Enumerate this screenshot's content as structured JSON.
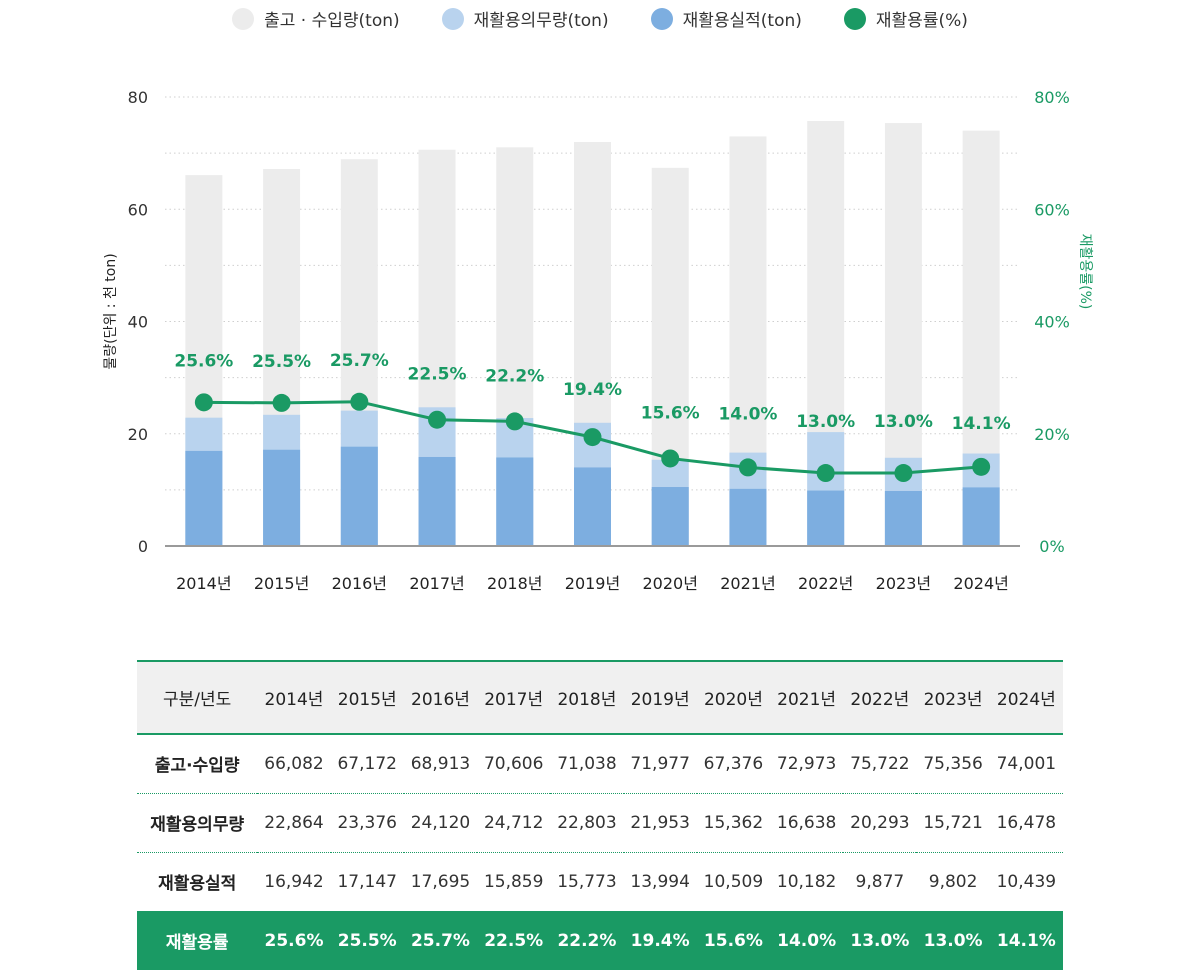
{
  "legend": [
    {
      "label": "출고 · 수입량(ton)",
      "color": "#ececec"
    },
    {
      "label": "재활용의무량(ton)",
      "color": "#b9d3ee"
    },
    {
      "label": "재활용실적(ton)",
      "color": "#7daee0"
    },
    {
      "label": "재활용률(%)",
      "color": "#1a9a64"
    }
  ],
  "chart_data": {
    "type": "bar",
    "categories": [
      "2014년",
      "2015년",
      "2016년",
      "2017년",
      "2018년",
      "2019년",
      "2020년",
      "2021년",
      "2022년",
      "2023년",
      "2024년"
    ],
    "series": [
      {
        "name": "출고 · 수입량(ton)",
        "type": "bar",
        "axis": "left",
        "color": "#ececec",
        "values": [
          66.082,
          67.172,
          68.913,
          70.606,
          71.038,
          71.977,
          67.376,
          72.973,
          75.722,
          75.356,
          74.001
        ]
      },
      {
        "name": "재활용의무량(ton)",
        "type": "bar",
        "axis": "left",
        "color": "#b9d3ee",
        "values": [
          22.864,
          23.376,
          24.12,
          24.712,
          22.803,
          21.953,
          15.362,
          16.638,
          20.293,
          15.721,
          16.478
        ]
      },
      {
        "name": "재활용실적(ton)",
        "type": "bar",
        "axis": "left",
        "color": "#7daee0",
        "values": [
          16.942,
          17.147,
          17.695,
          15.859,
          15.773,
          13.994,
          10.509,
          10.182,
          9.877,
          9.802,
          10.439
        ]
      },
      {
        "name": "재활용률(%)",
        "type": "line",
        "axis": "right",
        "color": "#1a9a64",
        "values": [
          25.6,
          25.5,
          25.7,
          22.5,
          22.2,
          19.4,
          15.6,
          14.0,
          13.0,
          13.0,
          14.1
        ]
      }
    ],
    "point_labels": [
      "25.6%",
      "25.5%",
      "25.7%",
      "22.5%",
      "22.2%",
      "19.4%",
      "15.6%",
      "14.0%",
      "13.0%",
      "13.0%",
      "14.1%"
    ],
    "ylabel": "물량(단위 : 천 ton)",
    "ylabel_right": "재활용률(%)",
    "ylim": [
      0,
      80
    ],
    "ylim_right": [
      0,
      80
    ],
    "yticks": [
      "0",
      "20",
      "40",
      "60",
      "80"
    ],
    "yticks_right": [
      "0%",
      "20%",
      "40%",
      "60%",
      "80%"
    ],
    "grid": true,
    "legend_position": "top"
  },
  "table": {
    "header_label": "구분/년도",
    "years": [
      "2014년",
      "2015년",
      "2016년",
      "2017년",
      "2018년",
      "2019년",
      "2020년",
      "2021년",
      "2022년",
      "2023년",
      "2024년"
    ],
    "rows": [
      {
        "label": "출고·수입량",
        "values": [
          "66,082",
          "67,172",
          "68,913",
          "70,606",
          "71,038",
          "71,977",
          "67,376",
          "72,973",
          "75,722",
          "75,356",
          "74,001"
        ]
      },
      {
        "label": "재활용의무량",
        "values": [
          "22,864",
          "23,376",
          "24,120",
          "24,712",
          "22,803",
          "21,953",
          "15,362",
          "16,638",
          "20,293",
          "15,721",
          "16,478"
        ]
      },
      {
        "label": "재활용실적",
        "values": [
          "16,942",
          "17,147",
          "17,695",
          "15,859",
          "15,773",
          "13,994",
          "10,509",
          "10,182",
          "9,877",
          "9,802",
          "10,439"
        ]
      },
      {
        "label": "재활용률",
        "values": [
          "25.6%",
          "25.5%",
          "25.7%",
          "22.5%",
          "22.2%",
          "19.4%",
          "15.6%",
          "14.0%",
          "13.0%",
          "13.0%",
          "14.1%"
        ]
      }
    ]
  }
}
